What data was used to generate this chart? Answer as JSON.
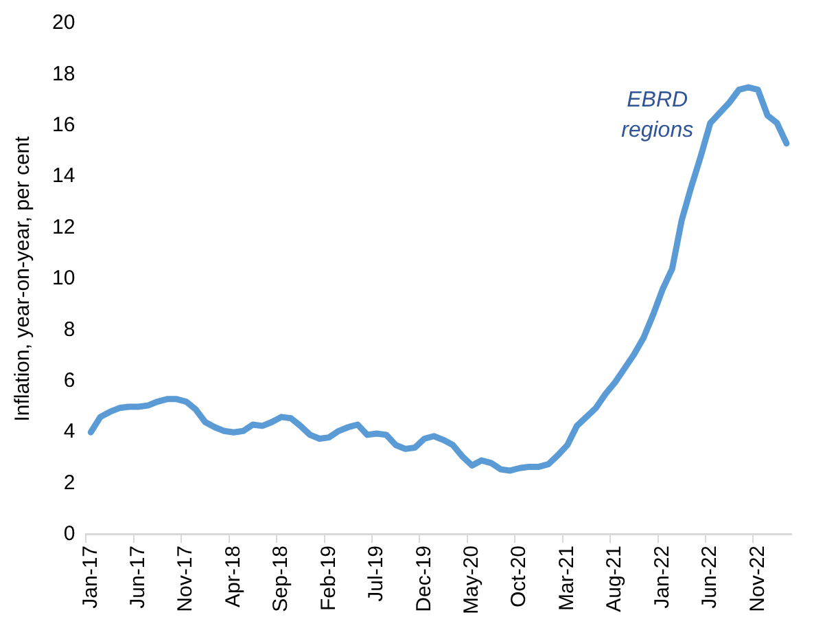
{
  "chart_data": {
    "type": "line",
    "ylabel": "Inflation, year-on-year, per cent",
    "categories": [
      "Jan-17",
      null,
      null,
      null,
      null,
      "Jun-17",
      null,
      null,
      null,
      null,
      "Nov-17",
      null,
      null,
      null,
      null,
      "Apr-18",
      null,
      null,
      null,
      null,
      "Sep-18",
      null,
      null,
      null,
      null,
      "Feb-19",
      null,
      null,
      null,
      null,
      "Jul-19",
      null,
      null,
      null,
      null,
      "Dec-19",
      null,
      null,
      null,
      null,
      "May-20",
      null,
      null,
      null,
      null,
      "Oct-20",
      null,
      null,
      null,
      null,
      "Mar-21",
      null,
      null,
      null,
      null,
      "Aug-21",
      null,
      null,
      null,
      null,
      "Jan-22",
      null,
      null,
      null,
      null,
      "Jun-22",
      null,
      null,
      null,
      null,
      "Nov-22",
      null,
      null,
      null
    ],
    "series": [
      {
        "color": "#5b9bd5",
        "values": [
          4.0,
          4.6,
          4.8,
          4.95,
          5.0,
          5.0,
          5.05,
          5.2,
          5.3,
          5.3,
          5.2,
          4.9,
          4.4,
          4.2,
          4.05,
          4.0,
          4.05,
          4.3,
          4.25,
          4.4,
          4.6,
          4.55,
          4.25,
          3.9,
          3.75,
          3.8,
          4.05,
          4.2,
          4.3,
          3.9,
          3.95,
          3.9,
          3.5,
          3.35,
          3.4,
          3.75,
          3.85,
          3.7,
          3.5,
          3.05,
          2.7,
          2.9,
          2.8,
          2.55,
          2.5,
          2.6,
          2.65,
          2.65,
          2.75,
          3.1,
          3.5,
          4.25,
          4.6,
          4.95,
          5.5,
          5.95,
          6.5,
          7.05,
          7.7,
          8.6,
          9.6,
          10.4,
          12.3,
          13.6,
          14.8,
          16.1,
          16.5,
          16.9,
          17.4,
          17.5,
          17.4,
          16.4,
          16.1,
          15.3
        ]
      }
    ],
    "ylim": [
      0,
      20
    ],
    "yticks": [
      0,
      2,
      4,
      6,
      8,
      10,
      12,
      14,
      16,
      18,
      20
    ],
    "grid": false,
    "legend": false,
    "marker": "none",
    "line_style": "solid",
    "annotations": [
      "EBRD regions"
    ]
  }
}
